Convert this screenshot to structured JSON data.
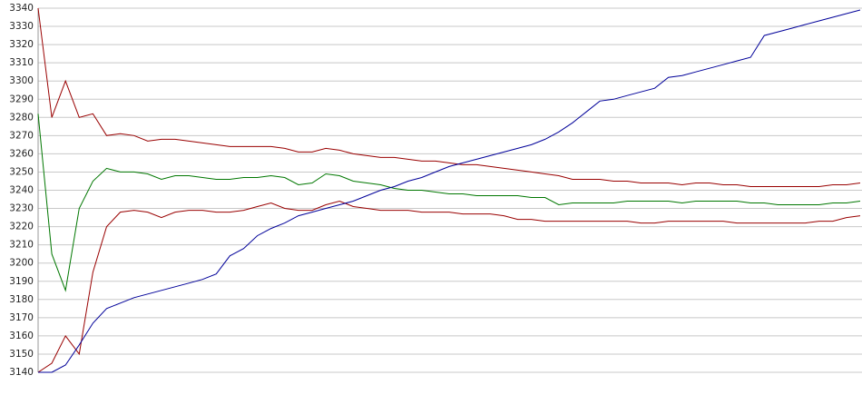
{
  "chart_data": {
    "type": "line",
    "ylim": [
      3140,
      3340
    ],
    "yticks": [
      3140,
      3150,
      3160,
      3170,
      3180,
      3190,
      3200,
      3210,
      3220,
      3230,
      3240,
      3250,
      3260,
      3270,
      3280,
      3290,
      3300,
      3310,
      3320,
      3330,
      3340
    ],
    "grid": true,
    "series": [
      {
        "color": "#990000",
        "values": [
          3340,
          3280,
          3300,
          3280,
          3282,
          3270,
          3271,
          3270,
          3267,
          3268,
          3268,
          3267,
          3266,
          3265,
          3264,
          3264,
          3264,
          3264,
          3263,
          3261,
          3261,
          3263,
          3262,
          3260,
          3259,
          3258,
          3258,
          3257,
          3256,
          3256,
          3255,
          3254,
          3254,
          3253,
          3252,
          3251,
          3250,
          3249,
          3248,
          3246,
          3246,
          3246,
          3245,
          3245,
          3244,
          3244,
          3244,
          3243,
          3244,
          3244,
          3243,
          3243,
          3242,
          3242,
          3242,
          3242,
          3242,
          3242,
          3243,
          3243,
          3244
        ]
      },
      {
        "color": "#990000",
        "values": [
          3140,
          3145,
          3160,
          3150,
          3195,
          3220,
          3228,
          3229,
          3228,
          3225,
          3228,
          3229,
          3229,
          3228,
          3228,
          3229,
          3231,
          3233,
          3230,
          3229,
          3229,
          3232,
          3234,
          3231,
          3230,
          3229,
          3229,
          3229,
          3228,
          3228,
          3228,
          3227,
          3227,
          3227,
          3226,
          3224,
          3224,
          3223,
          3223,
          3223,
          3223,
          3223,
          3223,
          3223,
          3222,
          3222,
          3223,
          3223,
          3223,
          3223,
          3223,
          3222,
          3222,
          3222,
          3222,
          3222,
          3222,
          3223,
          3223,
          3225,
          3226
        ]
      },
      {
        "color": "#007700",
        "values": [
          3282,
          3205,
          3185,
          3230,
          3245,
          3252,
          3250,
          3250,
          3249,
          3246,
          3248,
          3248,
          3247,
          3246,
          3246,
          3247,
          3247,
          3248,
          3247,
          3243,
          3244,
          3249,
          3248,
          3245,
          3244,
          3243,
          3241,
          3240,
          3240,
          3239,
          3238,
          3238,
          3237,
          3237,
          3237,
          3237,
          3236,
          3236,
          3232,
          3233,
          3233,
          3233,
          3233,
          3234,
          3234,
          3234,
          3234,
          3233,
          3234,
          3234,
          3234,
          3234,
          3233,
          3233,
          3232,
          3232,
          3232,
          3232,
          3233,
          3233,
          3234
        ]
      },
      {
        "color": "#000099",
        "values": [
          3140,
          3140,
          3144,
          3155,
          3167,
          3175,
          3178,
          3181,
          3183,
          3185,
          3187,
          3189,
          3191,
          3194,
          3204,
          3208,
          3215,
          3219,
          3222,
          3226,
          3228,
          3230,
          3232,
          3234,
          3237,
          3240,
          3242,
          3245,
          3247,
          3250,
          3253,
          3255,
          3257,
          3259,
          3261,
          3263,
          3265,
          3268,
          3272,
          3277,
          3283,
          3289,
          3290,
          3292,
          3294,
          3296,
          3302,
          3303,
          3305,
          3307,
          3309,
          3311,
          3313,
          3325,
          3327,
          3329,
          3331,
          3333,
          3335,
          3337,
          3339
        ]
      }
    ]
  }
}
